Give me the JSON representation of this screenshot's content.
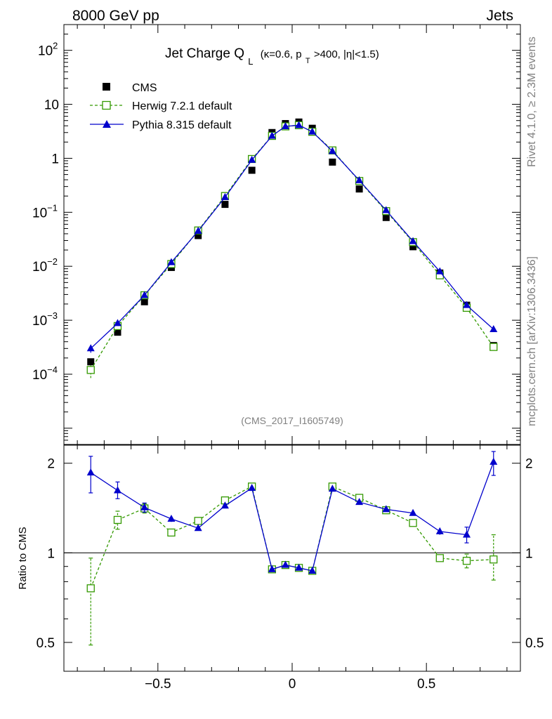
{
  "header": {
    "left": "8000 GeV pp",
    "right": "Jets"
  },
  "side_labels": {
    "rivet": "Rivet 4.1.0, ≥ 2.3M events",
    "mcplots": "mcplots.cern.ch [arXiv:1306.3436]"
  },
  "chart_data": [
    {
      "type": "scatter",
      "panel": "main",
      "title": {
        "main": "Jet Charge Q",
        "sub_L": "L",
        "p1": "(κ=0.6, p",
        "sub_T": "T",
        "p2": ">400, |η|<1.5)"
      },
      "watermark": "(CMS_2017_I1605749)",
      "yscale": "log",
      "ylim": [
        5e-06,
        300
      ],
      "xlim": [
        -0.85,
        0.85
      ],
      "y_ticks": [
        {
          "v": 0.0001,
          "base": "10",
          "exp": "−4"
        },
        {
          "v": 0.001,
          "base": "10",
          "exp": "−3"
        },
        {
          "v": 0.01,
          "base": "10",
          "exp": "−2"
        },
        {
          "v": 0.1,
          "base": "10",
          "exp": "−1"
        },
        {
          "v": 1,
          "base": "1",
          "exp": ""
        },
        {
          "v": 10,
          "base": "10",
          "exp": ""
        },
        {
          "v": 100,
          "base": "10",
          "exp": "2"
        }
      ],
      "x": [
        -0.75,
        -0.65,
        -0.55,
        -0.45,
        -0.35,
        -0.25,
        -0.15,
        -0.075,
        -0.025,
        0.025,
        0.075,
        0.15,
        0.25,
        0.35,
        0.45,
        0.55,
        0.65,
        0.75
      ],
      "series": [
        {
          "name": "CMS",
          "color": "#000000",
          "style": "filled-square",
          "values": [
            0.00017,
            0.0006,
            0.0022,
            0.0095,
            0.037,
            0.14,
            0.6,
            3.0,
            4.4,
            4.7,
            3.6,
            0.85,
            0.27,
            0.08,
            0.023,
            0.0075,
            0.0019,
            0.00034
          ]
        },
        {
          "name": "Herwig 7.2.1 default",
          "color": "#339900",
          "style": "open-square-dashed",
          "values": [
            0.00012,
            0.00078,
            0.0029,
            0.011,
            0.046,
            0.2,
            0.97,
            2.6,
            3.9,
            4.1,
            3.1,
            1.4,
            0.38,
            0.105,
            0.028,
            0.0068,
            0.0017,
            0.00032
          ],
          "errors": [
            3.5e-05,
            0,
            0,
            0,
            0,
            0,
            0,
            0,
            0,
            0,
            0,
            0,
            0,
            0,
            0,
            0,
            0,
            0
          ]
        },
        {
          "name": "Pythia 8.315 default",
          "color": "#0000cc",
          "style": "filled-triangle-solid",
          "values": [
            0.0003,
            0.00088,
            0.0029,
            0.0118,
            0.045,
            0.19,
            0.93,
            2.6,
            3.9,
            4.1,
            3.1,
            1.35,
            0.39,
            0.109,
            0.029,
            0.008,
            0.0019,
            0.00068
          ],
          "errors": [
            5e-05,
            0,
            0,
            0,
            0,
            0,
            0,
            0,
            0,
            0,
            0,
            0,
            0,
            0,
            0,
            0,
            0,
            0
          ]
        }
      ]
    },
    {
      "type": "scatter",
      "panel": "ratio",
      "ylabel": "Ratio to CMS",
      "yscale": "log",
      "ylim": [
        0.4,
        2.3
      ],
      "y_ticks": [
        {
          "v": 0.5,
          "label": "0.5"
        },
        {
          "v": 1,
          "label": "1"
        },
        {
          "v": 2,
          "label": "2"
        }
      ],
      "x_ticks": [
        {
          "v": -0.5,
          "label": "−0.5"
        },
        {
          "v": 0,
          "label": "0"
        },
        {
          "v": 0.5,
          "label": "0.5"
        }
      ],
      "reference": 1.0,
      "x": [
        -0.75,
        -0.65,
        -0.55,
        -0.45,
        -0.35,
        -0.25,
        -0.15,
        -0.075,
        -0.025,
        0.025,
        0.075,
        0.15,
        0.25,
        0.35,
        0.45,
        0.55,
        0.65,
        0.75
      ],
      "series": [
        {
          "name": "Herwig 7.2.1 default",
          "color": "#339900",
          "style": "open-square-dashed",
          "values": [
            0.76,
            1.29,
            1.41,
            1.17,
            1.28,
            1.5,
            1.67,
            0.88,
            0.91,
            0.89,
            0.87,
            1.67,
            1.53,
            1.39,
            1.26,
            0.96,
            0.94,
            0.95
          ],
          "err_lo": [
            0.27,
            0.09,
            0.05,
            0.02,
            0.02,
            0.02,
            0.01,
            0.01,
            0.01,
            0.01,
            0.01,
            0.01,
            0.01,
            0.02,
            0.02,
            0.02,
            0.05,
            0.14
          ],
          "err_hi": [
            0.2,
            0.09,
            0.05,
            0.02,
            0.02,
            0.02,
            0.01,
            0.01,
            0.01,
            0.01,
            0.01,
            0.01,
            0.01,
            0.02,
            0.02,
            0.02,
            0.05,
            0.2
          ]
        },
        {
          "name": "Pythia 8.315 default",
          "color": "#0000cc",
          "style": "filled-triangle-solid",
          "values": [
            1.86,
            1.62,
            1.42,
            1.3,
            1.21,
            1.44,
            1.65,
            0.88,
            0.91,
            0.89,
            0.87,
            1.64,
            1.48,
            1.4,
            1.36,
            1.18,
            1.15,
            2.02
          ],
          "err_lo": [
            0.27,
            0.1,
            0.05,
            0.03,
            0.02,
            0.02,
            0.01,
            0.01,
            0.01,
            0.01,
            0.01,
            0.01,
            0.01,
            0.02,
            0.02,
            0.03,
            0.07,
            0.2
          ],
          "err_hi": [
            0.25,
            0.11,
            0.05,
            0.03,
            0.02,
            0.02,
            0.01,
            0.01,
            0.01,
            0.01,
            0.01,
            0.01,
            0.01,
            0.02,
            0.02,
            0.03,
            0.07,
            0.17
          ]
        }
      ]
    }
  ]
}
